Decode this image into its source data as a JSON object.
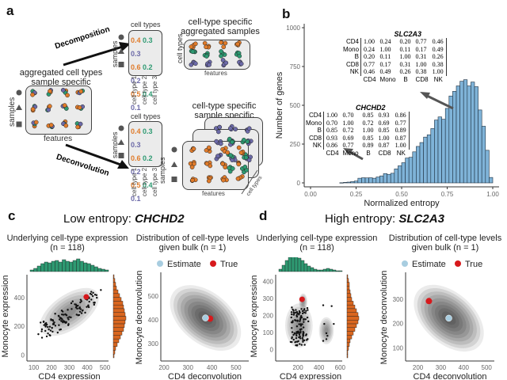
{
  "panels": {
    "a": {
      "letter": "a",
      "left_box_title_line1": "aggregated cell types",
      "left_box_title_line2": "sample specific",
      "left_box_xlabel": "features",
      "left_box_ylabel": "samples",
      "decomposition_label": "Decomposition",
      "deconvolution_label": "Deconvolution",
      "matrix_header": "cell types",
      "matrix_ylabel": "samples",
      "matrix_cols": [
        "cell type 1",
        "cell type 2",
        "cell type 3"
      ],
      "matrix_rows": [
        [
          "0.4",
          "0.3",
          "0.3"
        ],
        [
          "0.6",
          "0.2",
          "0.2"
        ],
        [
          "0.5",
          "0.4",
          "0.1"
        ]
      ],
      "sample_shapes": [
        "circle",
        "triangle",
        "square"
      ],
      "top_right_title_line1": "cell-type specific",
      "top_right_title_line2": "aggregated samples",
      "top_right_ylabel": "cell types",
      "top_right_xlabel": "features",
      "bottom_right_title_line1": "cell-type specific",
      "bottom_right_title_line2": "sample specific",
      "bottom_right_ylabel": "samples",
      "bottom_right_xlabel": "features",
      "bottom_right_depth_label": "cell types",
      "colors": {
        "cell_type_1": "#e07b2a",
        "cell_type_2": "#2e9a72",
        "cell_type_3": "#6c6aa8"
      }
    },
    "b": {
      "letter": "b",
      "slc2a3_title": "SLC2A3",
      "chchd2_title": "CHCHD2",
      "matrix_labels": [
        "CD4",
        "Mono",
        "B",
        "CD8",
        "NK"
      ],
      "slc2a3_matrix": [
        [
          "1.00",
          "0.24",
          "0.20",
          "0.77",
          "0.46"
        ],
        [
          "0.24",
          "1.00",
          "0.11",
          "0.17",
          "0.49"
        ],
        [
          "0.20",
          "0.11",
          "1.00",
          "0.31",
          "0.26"
        ],
        [
          "0.77",
          "0.17",
          "0.31",
          "1.00",
          "0.38"
        ],
        [
          "0.46",
          "0.49",
          "0.26",
          "0.38",
          "1.00"
        ]
      ],
      "chchd2_matrix": [
        [
          "1.00",
          "0.70",
          "0.85",
          "0.93",
          "0.86"
        ],
        [
          "0.70",
          "1.00",
          "0.72",
          "0.69",
          "0.77"
        ],
        [
          "0.85",
          "0.72",
          "1.00",
          "0.85",
          "0.89"
        ],
        [
          "0.93",
          "0.69",
          "0.85",
          "1.00",
          "0.87"
        ],
        [
          "0.86",
          "0.77",
          "0.89",
          "0.87",
          "1.00"
        ]
      ]
    },
    "c": {
      "letter": "c",
      "title_prefix": "Low entropy: ",
      "title_gene": "CHCHD2",
      "left_title_line1": "Underlying cell-type expression",
      "left_title_line2": "(n = 118)",
      "right_title_line1": "Distribution of cell-type levels",
      "right_title_line2": "given bulk (n = 1)",
      "legend": [
        {
          "label": "Estimate",
          "color": "#a8cde0"
        },
        {
          "label": "True",
          "color": "#d7191c"
        }
      ]
    },
    "d": {
      "letter": "d",
      "title_prefix": "High entropy: ",
      "title_gene": "SLC2A3",
      "left_title_line1": "Underlying cell-type expression",
      "left_title_line2": "(n = 118)",
      "right_title_line1": "Distribution of cell-type levels",
      "right_title_line2": "given bulk (n = 1)",
      "legend": [
        {
          "label": "Estimate",
          "color": "#a8cde0"
        },
        {
          "label": "True",
          "color": "#d7191c"
        }
      ]
    }
  },
  "chart_data": [
    {
      "id": "b-histogram",
      "type": "bar",
      "title": "",
      "xlabel": "Normalized entropy",
      "ylabel": "Number of genes",
      "xlim": [
        0.0,
        1.0
      ],
      "ylim": [
        0,
        1000
      ],
      "xticks": [
        "0.00",
        "0.25",
        "0.50",
        "0.75",
        "1.00"
      ],
      "yticks": [
        "0",
        "250",
        "500",
        "750",
        "1000"
      ],
      "bin_width": 0.02,
      "x": [
        0.17,
        0.19,
        0.21,
        0.23,
        0.25,
        0.27,
        0.29,
        0.31,
        0.33,
        0.35,
        0.37,
        0.39,
        0.41,
        0.43,
        0.45,
        0.47,
        0.49,
        0.51,
        0.53,
        0.55,
        0.57,
        0.59,
        0.61,
        0.63,
        0.65,
        0.67,
        0.69,
        0.71,
        0.73,
        0.75,
        0.77,
        0.79,
        0.81,
        0.83,
        0.85,
        0.87,
        0.89,
        0.91,
        0.93,
        0.95,
        0.97,
        0.99
      ],
      "values": [
        1,
        3,
        5,
        8,
        12,
        30,
        33,
        32,
        33,
        30,
        38,
        45,
        60,
        55,
        62,
        90,
        110,
        130,
        160,
        165,
        200,
        235,
        260,
        295,
        310,
        350,
        405,
        425,
        410,
        480,
        560,
        590,
        625,
        655,
        665,
        625,
        650,
        620,
        470,
        365,
        210,
        35
      ],
      "bar_color": "#7fb3d8",
      "grid": false
    },
    {
      "id": "c-scatter",
      "type": "scatter",
      "title": "Underlying cell-type expression (n = 118)",
      "xlabel": "CD4 expression",
      "ylabel": "Monocyte expression",
      "xlim": [
        80,
        520
      ],
      "ylim": [
        -20,
        560
      ],
      "xticks": [
        "100",
        "200",
        "300",
        "400",
        "500"
      ],
      "yticks": [
        "0",
        "200",
        "400"
      ],
      "true_point": {
        "x": 395,
        "y": 405
      },
      "marginals": {
        "top_color": "#2e9a72",
        "right_color": "#d9661f"
      }
    },
    {
      "id": "c-density",
      "type": "heatmap",
      "title": "Distribution of cell-type levels given bulk (n = 1)",
      "xlabel": "CD4 deconvolution",
      "ylabel": "Monocyte deconvolution",
      "xlim": [
        200,
        540
      ],
      "ylim": [
        240,
        580
      ],
      "xticks": [
        "200",
        "300",
        "400",
        "500"
      ],
      "yticks": [
        "300",
        "400",
        "500"
      ],
      "estimate": {
        "x": 373,
        "y": 408
      },
      "true": {
        "x": 392,
        "y": 405
      }
    },
    {
      "id": "d-scatter",
      "type": "scatter",
      "title": "Underlying cell-type expression (n = 118)",
      "xlabel": "CD4 expression",
      "ylabel": "Monocyte expression",
      "xlim": [
        20,
        620
      ],
      "ylim": [
        -50,
        440
      ],
      "xticks": [
        "200",
        "400",
        "600"
      ],
      "yticks": [
        "0",
        "100",
        "200",
        "300",
        "400"
      ],
      "true_point": {
        "x": 240,
        "y": 295
      },
      "marginals": {
        "top_color": "#2e9a72",
        "right_color": "#d9661f"
      }
    },
    {
      "id": "d-density",
      "type": "heatmap",
      "title": "Distribution of cell-type levels given bulk (n = 1)",
      "xlabel": "CD4 deconvolution",
      "ylabel": "Monocyte deconvolution",
      "xlim": [
        160,
        520
      ],
      "ylim": [
        60,
        390
      ],
      "xticks": [
        "200",
        "300",
        "400",
        "500"
      ],
      "yticks": [
        "100",
        "200",
        "300"
      ],
      "estimate": {
        "x": 335,
        "y": 222
      },
      "true": {
        "x": 248,
        "y": 292
      }
    }
  ]
}
